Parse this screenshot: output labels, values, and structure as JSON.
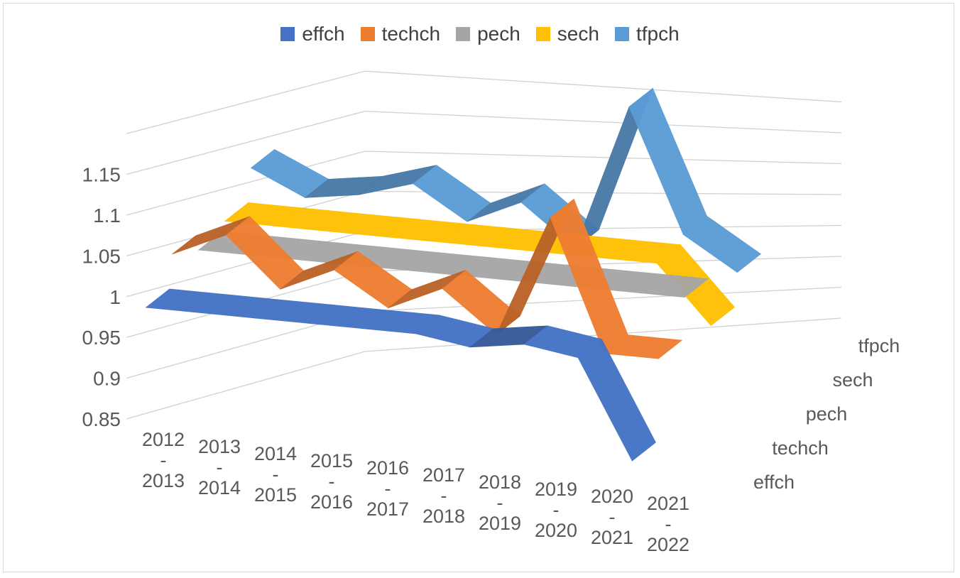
{
  "chart_data": {
    "type": "area",
    "style": "3d-ribbon-line",
    "categories": [
      [
        "2012",
        "-",
        "2013"
      ],
      [
        "2013",
        "-",
        "2014"
      ],
      [
        "2014",
        "-",
        "2015"
      ],
      [
        "2015",
        "-",
        "2016"
      ],
      [
        "2016",
        "-",
        "2017"
      ],
      [
        "2017",
        "-",
        "2018"
      ],
      [
        "2018",
        "-",
        "2019"
      ],
      [
        "2019",
        "-",
        "2020"
      ],
      [
        "2020",
        "-",
        "2021"
      ],
      [
        "2021",
        "-",
        "2022"
      ]
    ],
    "series": [
      {
        "name": "effch",
        "color": "#4472C4",
        "values": [
          1.0,
          1.0,
          1.0,
          1.0,
          1.0,
          1.0,
          0.99,
          1.0,
          0.99,
          0.87
        ]
      },
      {
        "name": "techch",
        "color": "#ED7D31",
        "values": [
          1.04,
          1.07,
          1.01,
          1.04,
          1.0,
          1.03,
          0.98,
          1.13,
          0.97,
          0.97
        ]
      },
      {
        "name": "pech",
        "color": "#A5A5A5",
        "values": [
          1.02,
          1.02,
          1.02,
          1.02,
          1.02,
          1.02,
          1.02,
          1.02,
          1.02,
          1.02
        ]
      },
      {
        "name": "sech",
        "color": "#FFC000",
        "values": [
          1.03,
          1.03,
          1.03,
          1.03,
          1.03,
          1.03,
          1.03,
          1.03,
          1.03,
          0.96
        ]
      },
      {
        "name": "tfpch",
        "color": "#5B9BD5",
        "values": [
          1.07,
          1.04,
          1.05,
          1.07,
          1.03,
          1.06,
          1.01,
          1.19,
          1.04,
          1.0
        ]
      }
    ],
    "yticks": [
      "1.15",
      "1.1",
      "1.05",
      "1",
      "0.95",
      "0.9",
      "0.85"
    ],
    "ylim": [
      0.85,
      1.2
    ],
    "legend": "top",
    "grid": true
  }
}
